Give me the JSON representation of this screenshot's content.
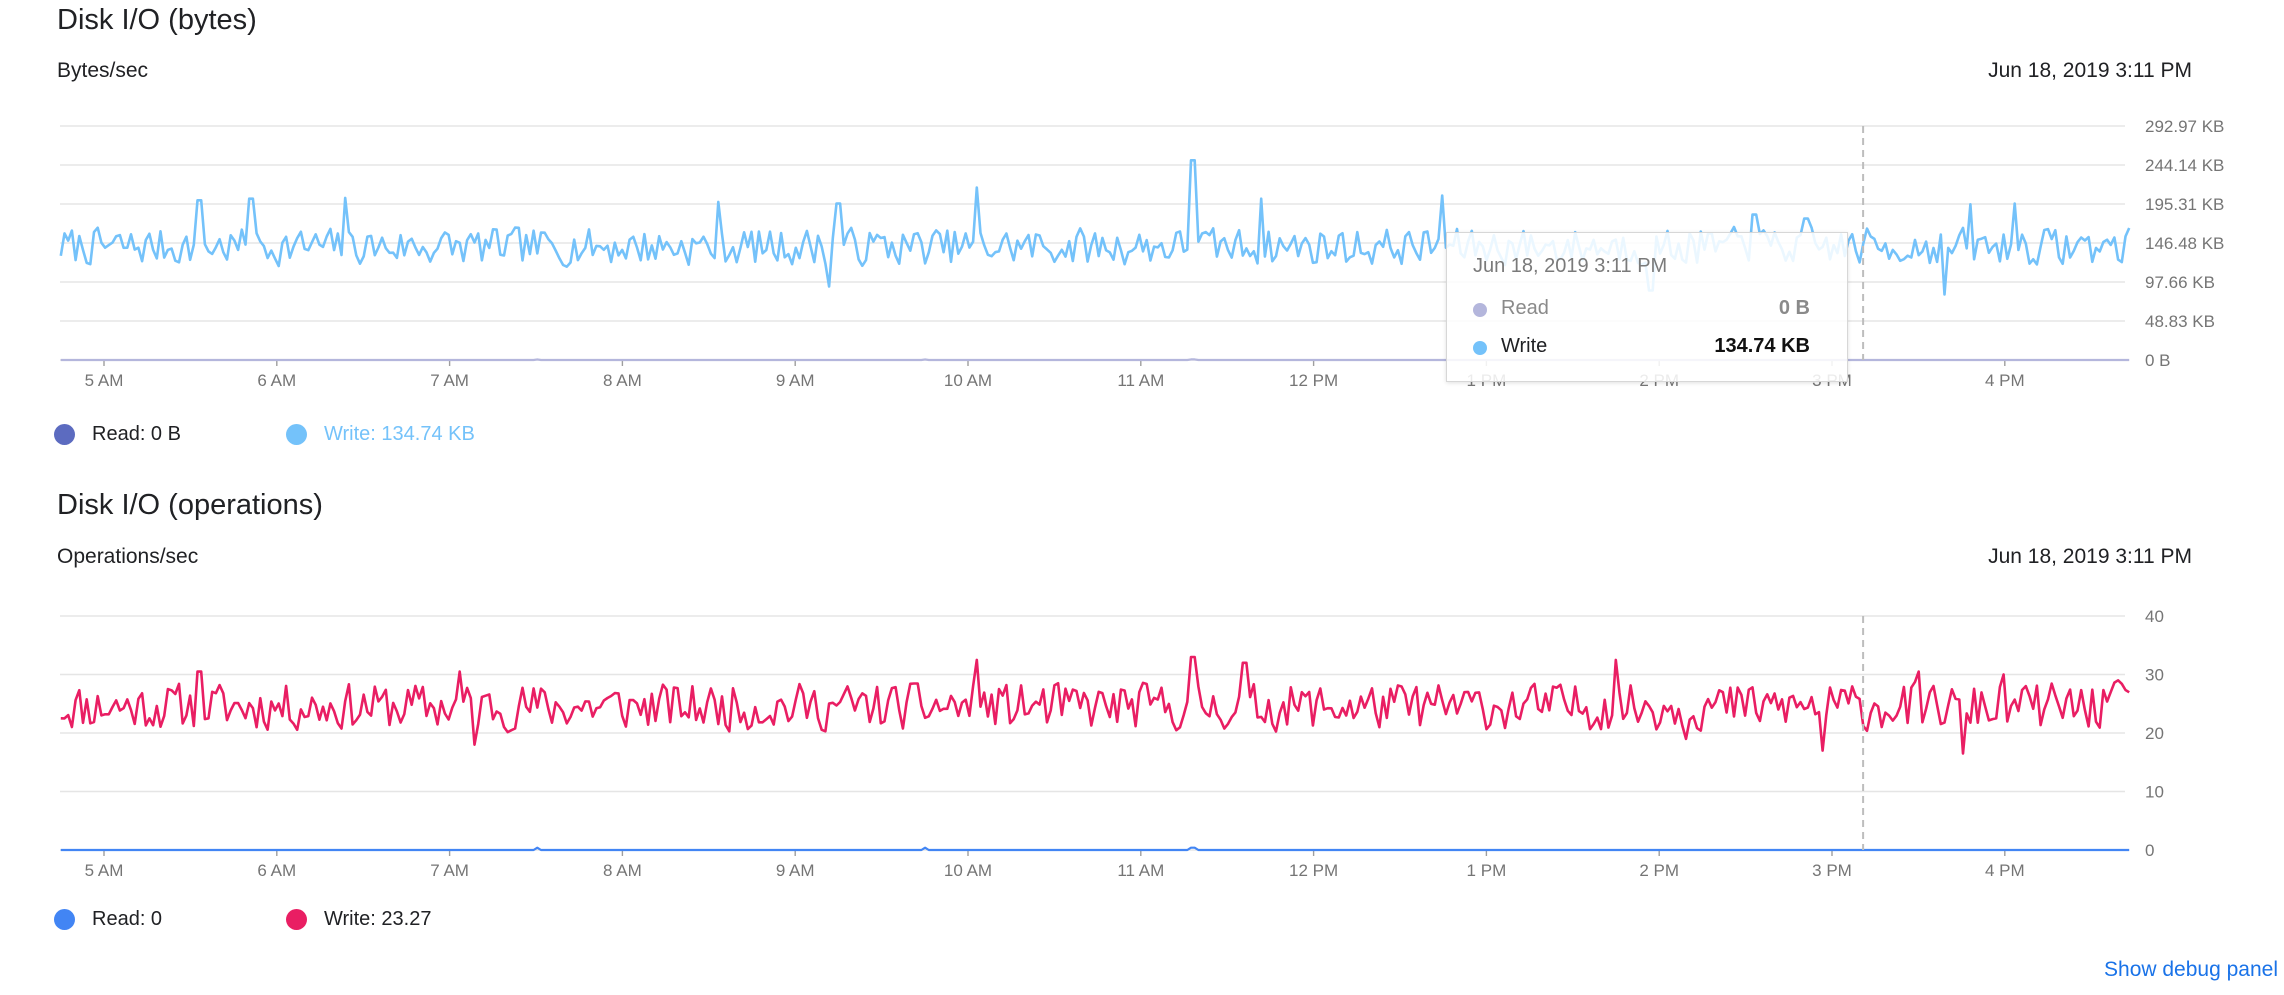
{
  "chart_data": [
    {
      "type": "line",
      "title": "Disk I/O (bytes)",
      "ylabel": "Bytes/sec",
      "timestamp": "Jun 18, 2019 3:11 PM",
      "x_ticks": [
        "5 AM",
        "6 AM",
        "7 AM",
        "8 AM",
        "9 AM",
        "10 AM",
        "11 AM",
        "12 PM",
        "1 PM",
        "2 PM",
        "3 PM",
        "4 PM"
      ],
      "y_ticks": [
        "0 B",
        "48.83 KB",
        "97.66 KB",
        "146.48 KB",
        "195.31 KB",
        "244.14 KB",
        "292.97 KB"
      ],
      "y_tick_values_kb": [
        0,
        48.83,
        97.66,
        146.48,
        195.31,
        244.14,
        292.97
      ],
      "ylim_kb": [
        0,
        292.97
      ],
      "x_range_hours": [
        4.75,
        16.72
      ],
      "grid": true,
      "cursor_time_hours": 15.18,
      "series": [
        {
          "name": "Read",
          "color": "#b4b6dc",
          "base": 0,
          "amp": 0,
          "seed": 1,
          "spikes": [
            [
              7.5,
              0.8
            ],
            [
              9.75,
              0.8
            ],
            [
              11.3,
              0.8
            ]
          ]
        },
        {
          "name": "Write",
          "color": "#74c2fa",
          "base": 142,
          "amp": 26,
          "seed": 7,
          "spikes": [
            [
              5.55,
              200
            ],
            [
              5.85,
              202
            ],
            [
              6.4,
              203
            ],
            [
              8.55,
              198
            ],
            [
              9.25,
              196
            ],
            [
              9.2,
              92
            ],
            [
              10.05,
              216
            ],
            [
              11.3,
              250
            ],
            [
              11.7,
              202
            ],
            [
              12.75,
              206
            ],
            [
              13.95,
              87
            ],
            [
              14.55,
              182
            ],
            [
              14.85,
              177
            ],
            [
              15.8,
              195
            ],
            [
              15.65,
              82
            ],
            [
              16.05,
              196
            ]
          ]
        }
      ],
      "tooltip": {
        "time": "Jun 18, 2019 3:11 PM",
        "rows": [
          {
            "name": "Read",
            "value": "0 B",
            "color": "#b4b6dc"
          },
          {
            "name": "Write",
            "value": "134.74 KB",
            "color": "#74c2fa"
          }
        ]
      },
      "legend": [
        {
          "label": "Read: 0 B",
          "color": "#5c6bc0",
          "text_color": "#202124"
        },
        {
          "label": "Write: 134.74 KB",
          "color": "#74c2fa",
          "text_color": "#74c2fa"
        }
      ]
    },
    {
      "type": "line",
      "title": "Disk I/O (operations)",
      "ylabel": "Operations/sec",
      "timestamp": "Jun 18, 2019 3:11 PM",
      "x_ticks": [
        "5 AM",
        "6 AM",
        "7 AM",
        "8 AM",
        "9 AM",
        "10 AM",
        "11 AM",
        "12 PM",
        "1 PM",
        "2 PM",
        "3 PM",
        "4 PM"
      ],
      "y_ticks": [
        "0",
        "10",
        "20",
        "30",
        "40"
      ],
      "y_tick_values": [
        0,
        10,
        20,
        30,
        40
      ],
      "ylim": [
        0,
        40
      ],
      "x_range_hours": [
        4.75,
        16.72
      ],
      "grid": true,
      "cursor_time_hours": 15.18,
      "series": [
        {
          "name": "Read",
          "color": "#4285f4",
          "base": 0,
          "amp": 0,
          "seed": 2,
          "spikes": [
            [
              7.5,
              0.4
            ],
            [
              9.75,
              0.4
            ],
            [
              11.3,
              0.4
            ]
          ]
        },
        {
          "name": "Write",
          "color": "#e91e63",
          "base": 24.5,
          "amp": 4.5,
          "seed": 11,
          "spikes": [
            [
              5.55,
              30.5
            ],
            [
              7.05,
              30.5
            ],
            [
              7.15,
              18
            ],
            [
              10.05,
              32.5
            ],
            [
              11.3,
              33
            ],
            [
              11.6,
              32
            ],
            [
              13.75,
              32.5
            ],
            [
              14.15,
              19
            ],
            [
              14.95,
              17
            ],
            [
              15.5,
              30.5
            ],
            [
              16.0,
              30
            ],
            [
              15.75,
              16.5
            ],
            [
              16.65,
              29
            ]
          ]
        }
      ],
      "legend": [
        {
          "label": "Read: 0",
          "color": "#4285f4",
          "text_color": "#202124"
        },
        {
          "label": "Write: 23.27",
          "color": "#e91e63",
          "text_color": "#202124"
        }
      ]
    }
  ],
  "footer": {
    "debug_link": "Show debug panel"
  }
}
